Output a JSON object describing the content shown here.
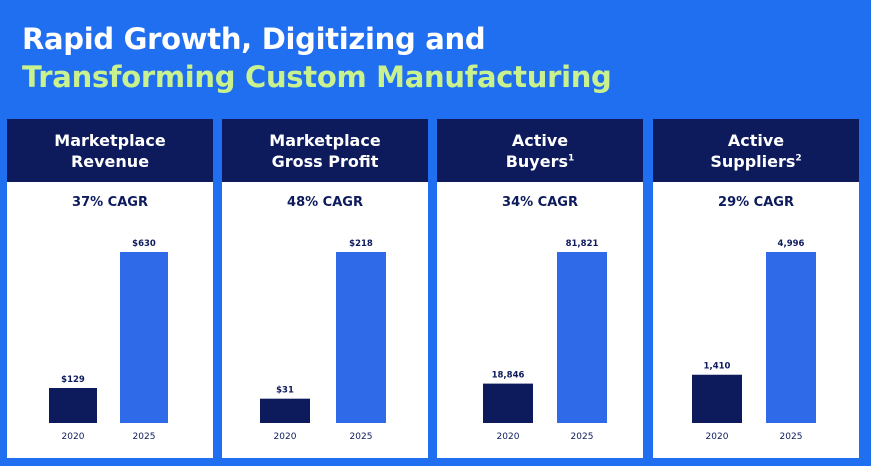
{
  "title": {
    "line1": "Rapid Growth, Digitizing and",
    "line2": "Transforming Custom Manufacturing"
  },
  "colors": {
    "background": "#1f6ff0",
    "header": "#0d1a5c",
    "bar_2020": "#0d1a5c",
    "bar_2025": "#2f6ae8",
    "highlight": "#c9f28f"
  },
  "panels": [
    {
      "line1": "Marketplace",
      "line2": "Revenue",
      "sup": "",
      "cagr": "37% CAGR"
    },
    {
      "line1": "Marketplace",
      "line2": "Gross Profit",
      "sup": "",
      "cagr": "48% CAGR"
    },
    {
      "line1": "Active",
      "line2": "Buyers",
      "sup": "1",
      "cagr": "34% CAGR"
    },
    {
      "line1": "Active",
      "line2": "Suppliers",
      "sup": "2",
      "cagr": "29% CAGR"
    }
  ],
  "chart_data": [
    {
      "type": "bar",
      "title": "Marketplace Revenue",
      "categories": [
        "2020",
        "2025"
      ],
      "values": [
        129,
        630
      ],
      "labels": [
        "$129",
        "$630"
      ]
    },
    {
      "type": "bar",
      "title": "Marketplace Gross Profit",
      "categories": [
        "2020",
        "2025"
      ],
      "values": [
        31,
        218
      ],
      "labels": [
        "$31",
        "$218"
      ]
    },
    {
      "type": "bar",
      "title": "Active Buyers",
      "categories": [
        "2020",
        "2025"
      ],
      "values": [
        18846,
        81821
      ],
      "labels": [
        "18,846",
        "81,821"
      ]
    },
    {
      "type": "bar",
      "title": "Active Suppliers",
      "categories": [
        "2020",
        "2025"
      ],
      "values": [
        1410,
        4996
      ],
      "labels": [
        "1,410",
        "4,996"
      ]
    }
  ]
}
